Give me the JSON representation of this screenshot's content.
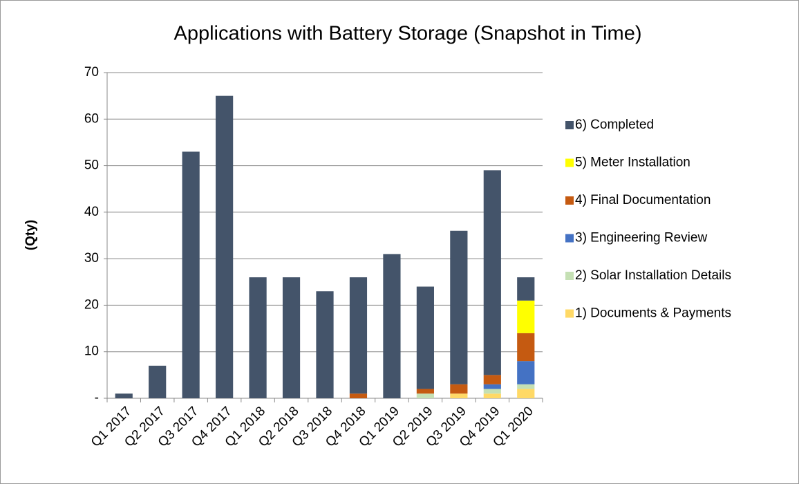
{
  "chart_data": {
    "type": "stacked_bar",
    "title": "Applications with Battery Storage (Snapshot in Time)",
    "y_label": "(Qty)",
    "categories": [
      "Q1 2017",
      "Q2 2017",
      "Q3 2017",
      "Q4 2017",
      "Q1 2018",
      "Q2 2018",
      "Q3 2018",
      "Q4 2018",
      "Q1 2019",
      "Q2 2019",
      "Q3 2019",
      "Q4 2019",
      "Q1 2020"
    ],
    "series": [
      {
        "name": "1) Documents & Payments",
        "color": "#ffd966",
        "values": [
          0,
          0,
          0,
          0,
          0,
          0,
          0,
          0,
          0,
          0,
          1,
          1,
          2
        ]
      },
      {
        "name": "2) Solar Installation Details",
        "color": "#c5e0b4",
        "values": [
          0,
          0,
          0,
          0,
          0,
          0,
          0,
          0,
          0,
          1,
          0,
          1,
          1
        ]
      },
      {
        "name": "3) Engineering Review",
        "color": "#4472c4",
        "values": [
          0,
          0,
          0,
          0,
          0,
          0,
          0,
          0,
          0,
          0,
          0,
          1,
          5
        ]
      },
      {
        "name": "4) Final Documentation",
        "color": "#c55a11",
        "values": [
          0,
          0,
          0,
          0,
          0,
          0,
          0,
          1,
          0,
          1,
          2,
          2,
          6
        ]
      },
      {
        "name": "5) Meter Installation",
        "color": "#ffff00",
        "values": [
          0,
          0,
          0,
          0,
          0,
          0,
          0,
          0,
          0,
          0,
          0,
          0,
          7
        ]
      },
      {
        "name": "6) Completed",
        "color": "#44546a",
        "values": [
          1,
          7,
          53,
          65,
          26,
          26,
          23,
          25,
          31,
          22,
          33,
          44,
          5
        ]
      }
    ],
    "ylim": [
      0,
      70
    ],
    "yticks": [
      {
        "value": 0,
        "label": "-"
      },
      10,
      20,
      30,
      40,
      50,
      60,
      70
    ],
    "grid": true
  }
}
